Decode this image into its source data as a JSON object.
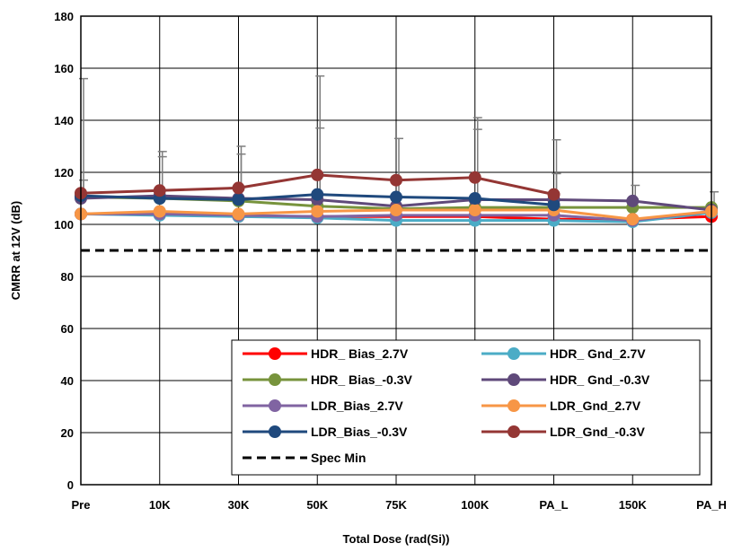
{
  "chart_data": {
    "type": "line",
    "title": "",
    "xlabel": "Total Dose (rad(Si))",
    "ylabel": "CMRR at 12V  (dB)",
    "categories": [
      "Pre",
      "10K",
      "30K",
      "50K",
      "75K",
      "100K",
      "PA_L",
      "150K",
      "PA_H"
    ],
    "ylim": [
      0,
      180
    ],
    "yticks": [
      "0",
      "20",
      "40",
      "60",
      "80",
      "100",
      "120",
      "140",
      "160",
      "180"
    ],
    "grid": true,
    "legend_position": "bottom-right",
    "series": [
      {
        "name": "HDR_ Bias_2.7V",
        "color": "#ff0000",
        "values": [
          104,
          104,
          103,
          103,
          103,
          103,
          102,
          102,
          103
        ]
      },
      {
        "name": "HDR_ Gnd_2.7V",
        "color": "#4bacc6",
        "values": [
          104,
          103.5,
          103,
          102.5,
          101.5,
          101.5,
          101.5,
          101,
          104.5
        ]
      },
      {
        "name": "HDR_ Bias_-0.3V",
        "color": "#77933c",
        "values": [
          110.5,
          110,
          109,
          107,
          106,
          106.5,
          106.5,
          106.5,
          106.5
        ]
      },
      {
        "name": "HDR_ Gnd_-0.3V",
        "color": "#5f497a",
        "values": [
          110,
          111,
          110,
          109.5,
          107,
          109.5,
          109.5,
          109,
          105.5
        ]
      },
      {
        "name": "LDR_Bias_2.7V",
        "color": "#8064a2",
        "values": [
          104,
          104,
          103.5,
          103,
          103.5,
          103.5,
          103.5,
          101.5,
          105
        ]
      },
      {
        "name": "LDR_Gnd_2.7V",
        "color": "#f79646",
        "values": [
          104,
          105,
          104,
          105,
          105.5,
          105.5,
          105.5,
          102,
          105
        ]
      },
      {
        "name": "LDR_Bias_-0.3V",
        "color": "#1f497d",
        "values": [
          111,
          110,
          109.5,
          111.5,
          110.5,
          110,
          107.5,
          null,
          null
        ]
      },
      {
        "name": "LDR_Gnd_-0.3V",
        "color": "#943634",
        "values": [
          112,
          113,
          114,
          119,
          117,
          118,
          111.5,
          null,
          null
        ]
      }
    ],
    "spec_line": {
      "name": "Spec Min",
      "value": 90,
      "color": "#000000"
    },
    "error_bar_tops": [
      {
        "category": "Pre",
        "value": 156
      },
      {
        "category": "Pre",
        "value": 117
      },
      {
        "category": "10K",
        "value": 128
      },
      {
        "category": "10K",
        "value": 126
      },
      {
        "category": "30K",
        "value": 130
      },
      {
        "category": "30K",
        "value": 127
      },
      {
        "category": "50K",
        "value": 157
      },
      {
        "category": "50K",
        "value": 137
      },
      {
        "category": "75K",
        "value": 133
      },
      {
        "category": "100K",
        "value": 141
      },
      {
        "category": "100K",
        "value": 136.5
      },
      {
        "category": "PA_L",
        "value": 132.5
      },
      {
        "category": "PA_L",
        "value": 119.5
      },
      {
        "category": "150K",
        "value": 115
      },
      {
        "category": "PA_H",
        "value": 112.5
      }
    ]
  }
}
